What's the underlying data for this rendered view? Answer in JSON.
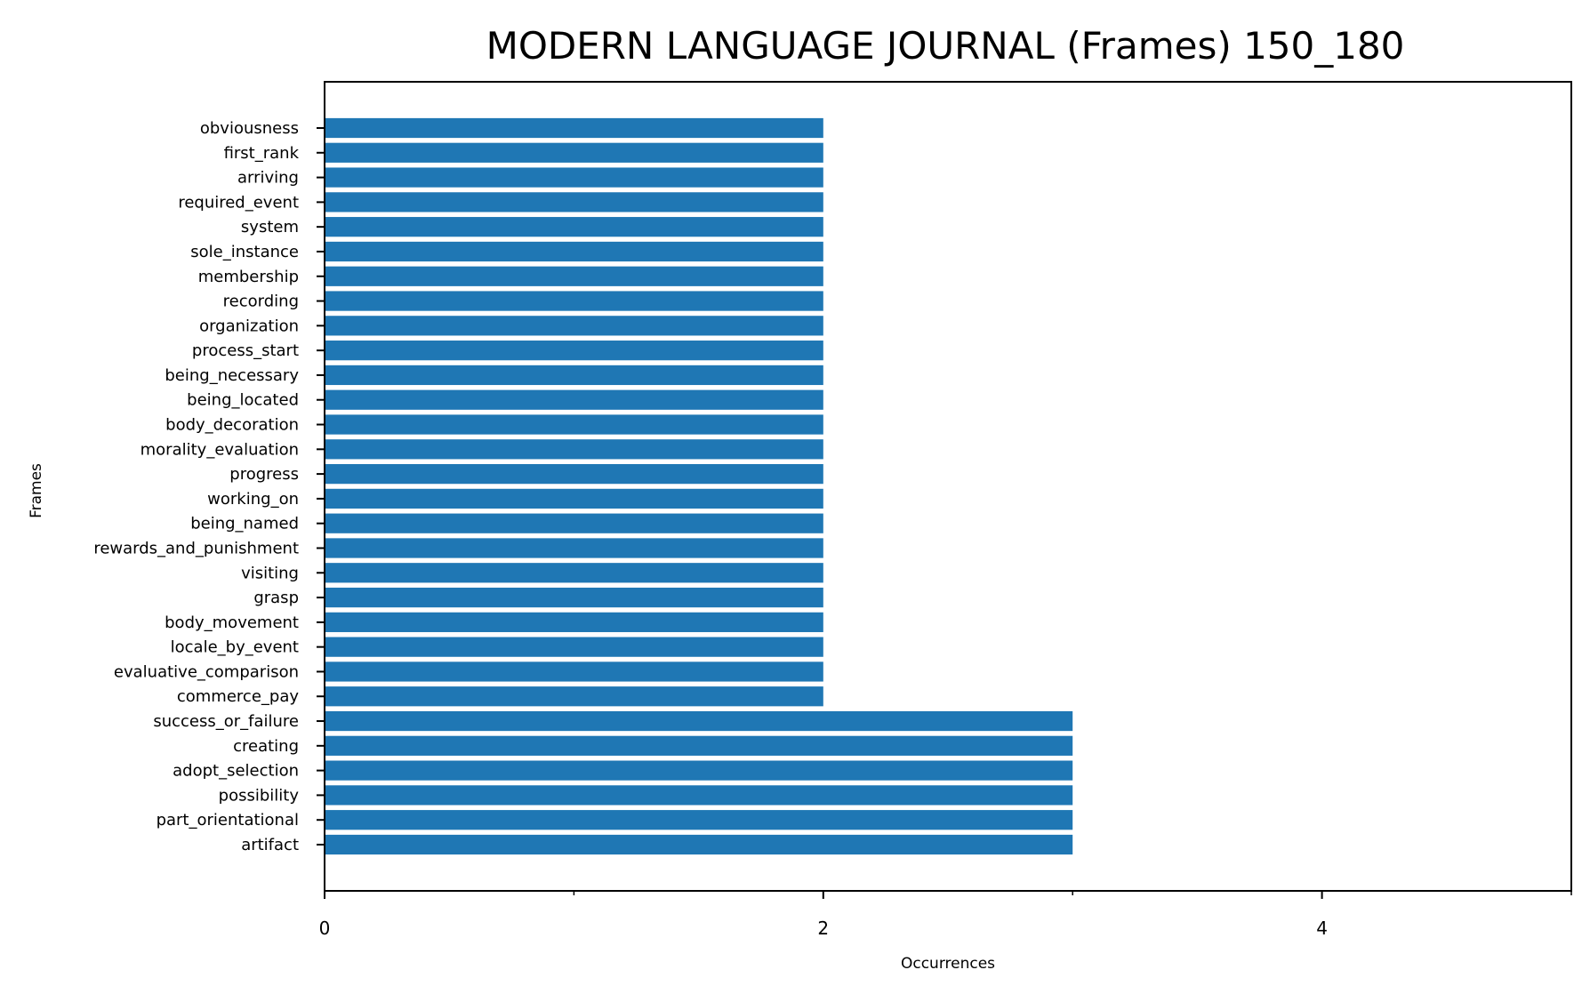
{
  "chart_data": {
    "type": "bar",
    "orientation": "horizontal",
    "title": "MODERN LANGUAGE JOURNAL (Frames) 150_180",
    "xlabel": "Occurrences",
    "ylabel": "Frames",
    "xlim": [
      0,
      5
    ],
    "xticks": [
      0,
      2,
      4
    ],
    "minor_xticks": [
      1,
      3,
      5
    ],
    "bar_color": "#1f77b4",
    "categories": [
      "obviousness",
      "first_rank",
      "arriving",
      "required_event",
      "system",
      "sole_instance",
      "membership",
      "recording",
      "organization",
      "process_start",
      "being_necessary",
      "being_located",
      "body_decoration",
      "morality_evaluation",
      "progress",
      "working_on",
      "being_named",
      "rewards_and_punishment",
      "visiting",
      "grasp",
      "body_movement",
      "locale_by_event",
      "evaluative_comparison",
      "commerce_pay",
      "success_or_failure",
      "creating",
      "adopt_selection",
      "possibility",
      "part_orientational",
      "artifact"
    ],
    "values": [
      2,
      2,
      2,
      2,
      2,
      2,
      2,
      2,
      2,
      2,
      2,
      2,
      2,
      2,
      2,
      2,
      2,
      2,
      2,
      2,
      2,
      2,
      2,
      2,
      3,
      3,
      3,
      3,
      3,
      3
    ]
  }
}
